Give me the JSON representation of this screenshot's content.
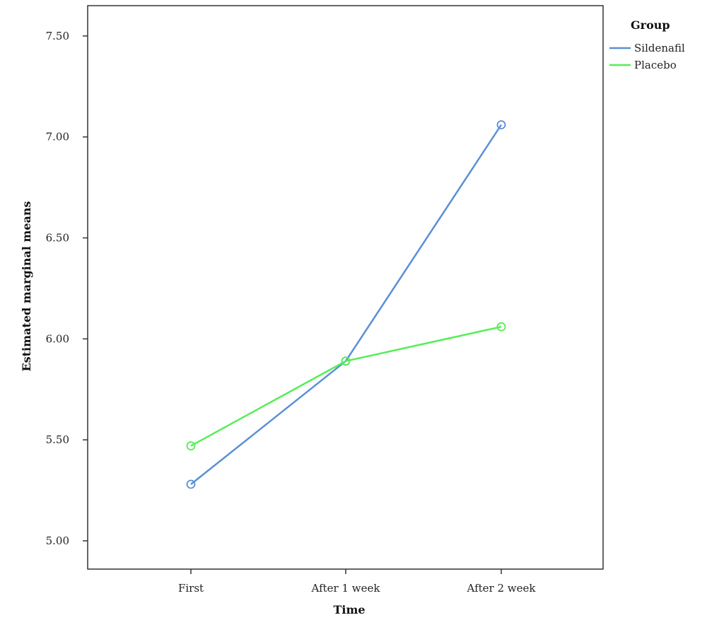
{
  "chart_data": {
    "type": "line",
    "xlabel": "Time",
    "ylabel": "Estimated marginal means",
    "categories": [
      "First",
      "After 1 week",
      "After 2 week"
    ],
    "yticks": [
      "5.00",
      "5.50",
      "6.00",
      "6.50",
      "7.00",
      "7.50"
    ],
    "ylim": [
      4.86,
      7.65
    ],
    "grid": false,
    "legend": {
      "title": "Group",
      "position": "right-top"
    },
    "series": [
      {
        "name": "Sildenafil",
        "color": "#5b8fd6",
        "values": [
          5.28,
          5.89,
          7.06
        ]
      },
      {
        "name": "Placebo",
        "color": "#55ee55",
        "values": [
          5.47,
          5.89,
          6.06
        ]
      }
    ]
  }
}
